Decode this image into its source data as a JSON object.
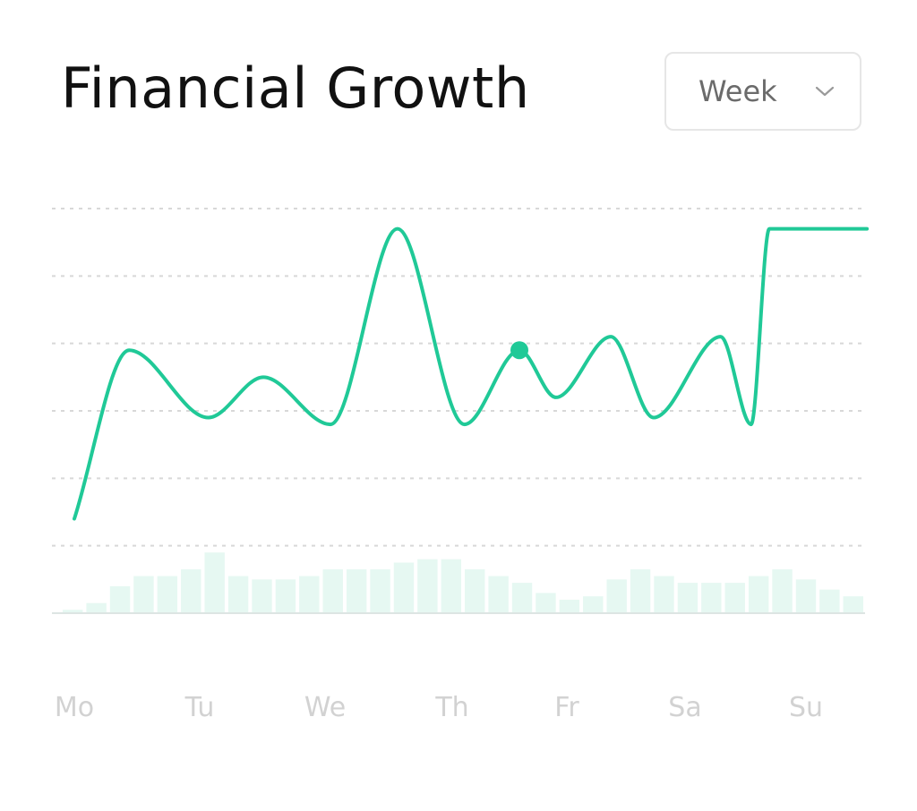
{
  "header": {
    "title": "Financial Growth",
    "period": {
      "selected": "Week",
      "icon": "chevron-down-icon"
    }
  },
  "colors": {
    "accent": "#20C997",
    "bar": "#E6F8F2",
    "grid": "#D8D8D8",
    "baseline": "#DDE5E3",
    "axis_label": "#D2D2D2"
  },
  "chart_data": [
    {
      "type": "line",
      "title": "",
      "xlabel": "",
      "ylabel": "",
      "ylim": [
        0,
        6
      ],
      "grid": true,
      "legend": "none",
      "tick_labels": [
        "Mo",
        "Tu",
        "We",
        "Th",
        "Fr",
        "Sa",
        "Su"
      ],
      "x": [
        0.0,
        0.45,
        1.1,
        1.55,
        2.1,
        2.65,
        3.2,
        3.65,
        3.95,
        4.4,
        4.75,
        5.3,
        5.55,
        5.7,
        6.5
      ],
      "y": [
        1.4,
        3.9,
        2.9,
        3.5,
        2.8,
        5.7,
        2.8,
        3.9,
        3.2,
        4.1,
        2.9,
        4.1,
        2.8,
        5.7,
        5.7
      ],
      "highlight": {
        "x": 3.65,
        "y": 3.9
      }
    },
    {
      "type": "bar",
      "ylim": [
        0,
        6
      ],
      "values": [
        0.05,
        0.15,
        0.4,
        0.55,
        0.55,
        0.65,
        0.9,
        0.55,
        0.5,
        0.5,
        0.55,
        0.65,
        0.65,
        0.65,
        0.75,
        0.8,
        0.8,
        0.65,
        0.55,
        0.45,
        0.3,
        0.2,
        0.25,
        0.5,
        0.65,
        0.55,
        0.45,
        0.45,
        0.45,
        0.55,
        0.65,
        0.5,
        0.35,
        0.25
      ]
    }
  ]
}
